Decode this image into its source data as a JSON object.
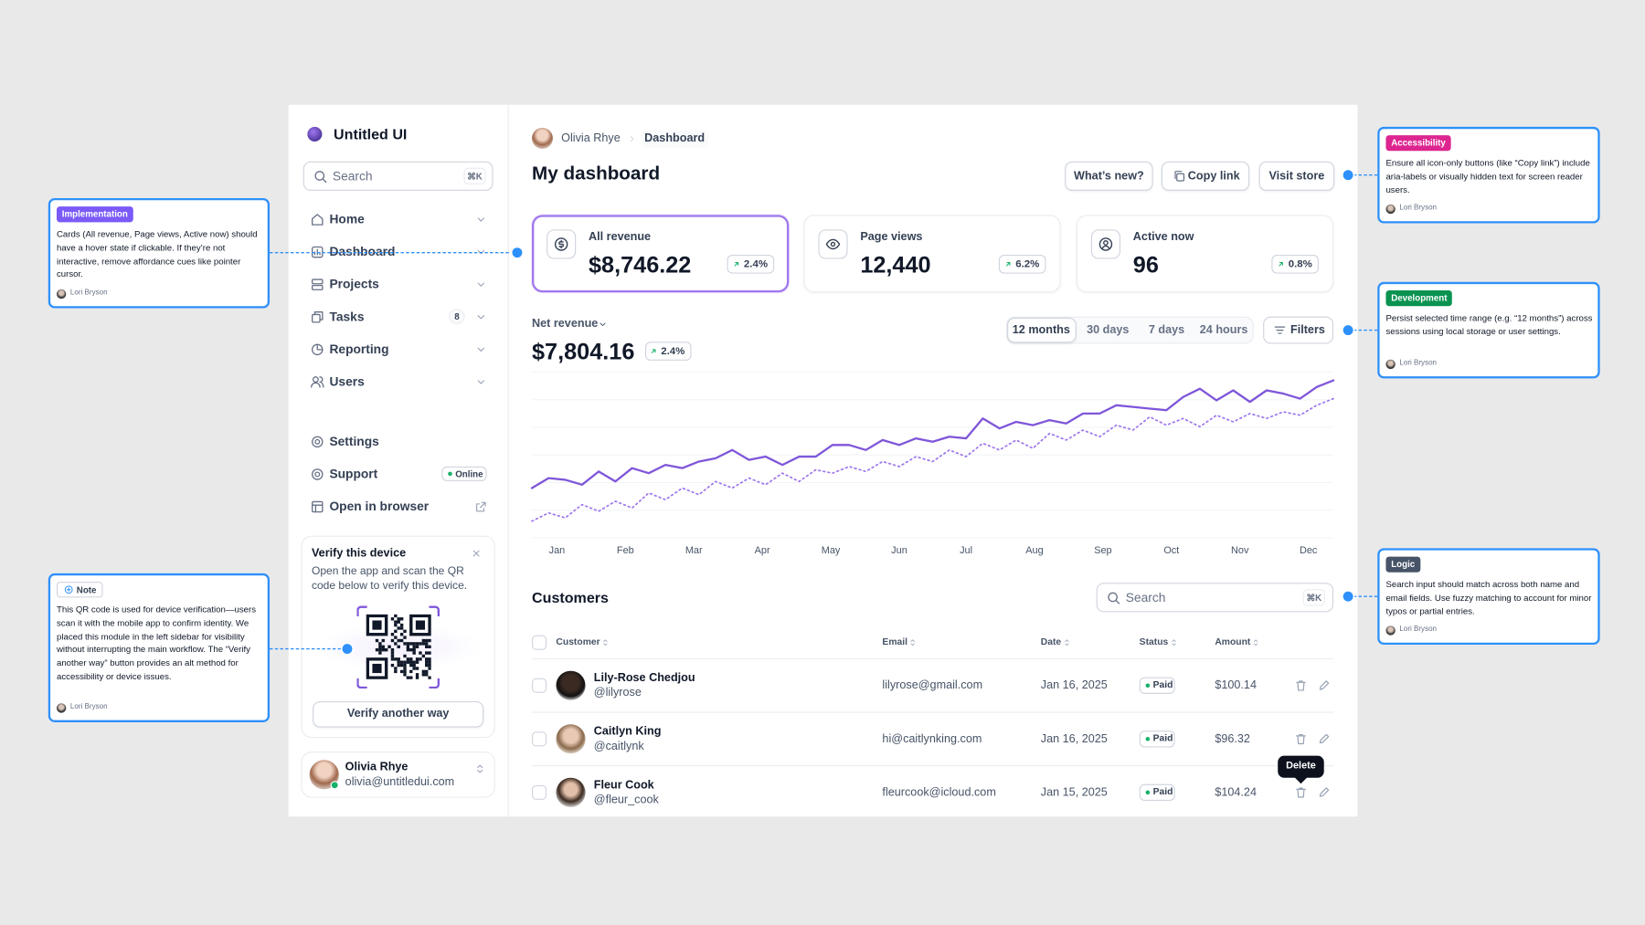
{
  "sidebar": {
    "brand": "Untitled UI",
    "search_placeholder": "Search",
    "search_shortcut": "⌘K",
    "nav": [
      {
        "label": "Home"
      },
      {
        "label": "Dashboard"
      },
      {
        "label": "Projects"
      },
      {
        "label": "Tasks",
        "badge": 8
      },
      {
        "label": "Reporting"
      },
      {
        "label": "Users"
      }
    ],
    "footer_nav": [
      {
        "label": "Settings"
      },
      {
        "label": "Support",
        "badge": "Online"
      },
      {
        "label": "Open in browser"
      }
    ],
    "verify": {
      "title": "Verify this device",
      "text": "Open the app and scan the QR code below to verify this device.",
      "button": "Verify another way"
    },
    "user": {
      "name": "Olivia Rhye",
      "email": "olivia@untitledui.com"
    }
  },
  "header": {
    "breadcrumb": [
      "Olivia Rhye",
      "Dashboard"
    ],
    "title": "My dashboard",
    "buttons": [
      "What’s new?",
      "Copy link",
      "Visit store"
    ]
  },
  "stats": [
    {
      "label": "All revenue",
      "value": "$8,746.22",
      "change": "2.4%"
    },
    {
      "label": "Page views",
      "value": "12,440",
      "change": "6.2%"
    },
    {
      "label": "Active now",
      "value": "96",
      "change": "0.8%"
    }
  ],
  "revenue": {
    "label": "Net revenue",
    "value": "$7,804.16",
    "change": "2.4%",
    "ranges": [
      "12 months",
      "30 days",
      "7 days",
      "24 hours"
    ],
    "selected_range": 0,
    "filters": "Filters"
  },
  "chart": {
    "type": "line",
    "x": [
      0,
      1,
      2,
      3,
      4,
      5,
      6,
      7,
      8,
      9,
      10,
      11,
      12,
      13,
      14,
      15,
      16,
      17,
      18,
      19,
      20,
      21,
      22,
      23,
      24,
      25,
      26,
      27,
      28,
      29,
      30,
      31,
      32,
      33,
      34,
      35,
      36,
      37,
      38,
      39,
      40,
      41,
      42,
      43,
      44,
      45,
      46,
      47,
      48
    ],
    "xlim": [
      0,
      48
    ],
    "ylim": [
      0,
      100
    ],
    "xticks": [
      {
        "value": 1.5,
        "label": "Jan"
      },
      {
        "value": 5.6,
        "label": "Feb"
      },
      {
        "value": 9.7,
        "label": "Mar"
      },
      {
        "value": 13.8,
        "label": "Apr"
      },
      {
        "value": 17.9,
        "label": "May"
      },
      {
        "value": 22,
        "label": "Jun"
      },
      {
        "value": 26,
        "label": "Jul"
      },
      {
        "value": 30.1,
        "label": "Aug"
      },
      {
        "value": 34.2,
        "label": "Sep"
      },
      {
        "value": 38.3,
        "label": "Oct"
      },
      {
        "value": 42.4,
        "label": "Nov"
      },
      {
        "value": 46.5,
        "label": "Dec"
      }
    ],
    "grid": true,
    "series": [
      {
        "color": "#7f56d9",
        "style": "solid",
        "values": [
          30,
          36,
          35,
          32,
          40,
          34,
          42,
          39,
          44,
          42,
          46,
          48,
          53,
          47,
          49,
          44,
          49,
          49,
          56,
          56,
          53,
          59,
          56,
          60,
          58,
          61,
          60,
          72,
          66,
          70,
          68,
          71,
          69,
          75,
          75,
          80,
          79,
          78,
          77,
          85,
          90,
          83,
          89,
          82,
          89,
          87,
          84,
          91,
          95
        ]
      },
      {
        "color": "#9e77ed",
        "style": "dotted",
        "values": [
          10,
          15,
          12,
          20,
          16,
          22,
          18,
          27,
          23,
          30,
          26,
          34,
          30,
          36,
          32,
          39,
          34,
          41,
          39,
          43,
          40,
          46,
          43,
          49,
          46,
          53,
          49,
          57,
          53,
          59,
          54,
          63,
          59,
          65,
          61,
          68,
          65,
          73,
          68,
          72,
          67,
          74,
          70,
          75,
          72,
          76,
          74,
          80,
          84
        ]
      }
    ]
  },
  "customers": {
    "title": "Customers",
    "search_placeholder": "Search",
    "search_shortcut": "⌘K",
    "columns": [
      "Customer",
      "Email",
      "Date",
      "Status",
      "Amount"
    ],
    "rows": [
      {
        "name": "Lily-Rose Chedjou",
        "handle": "@lilyrose",
        "email": "lilyrose@gmail.com",
        "date": "Jan 16, 2025",
        "status": "Paid",
        "amount": "$100.14"
      },
      {
        "name": "Caitlyn King",
        "handle": "@caitlynk",
        "email": "hi@caitlynking.com",
        "date": "Jan 16, 2025",
        "status": "Paid",
        "amount": "$96.32"
      },
      {
        "name": "Fleur Cook",
        "handle": "@fleur_cook",
        "email": "fleurcook@icloud.com",
        "date": "Jan 15, 2025",
        "status": "Paid",
        "amount": "$104.24"
      }
    ]
  },
  "tooltip": "Delete",
  "annotations": [
    {
      "tag": "Implementation",
      "color": "#7a5af8",
      "text": "Cards (All revenue, Page views, Active now) should have a hover state if clickable. If they’re not interactive, remove affordance cues like pointer cursor.",
      "author": "Lori Bryson"
    },
    {
      "tag": "Note",
      "color": "#ffffff",
      "text": "This QR code is used for device verification—users scan it with the mobile app to confirm identity. We placed this module in the left sidebar for visibility without interrupting the main workflow. The “Verify another way” button provides an alt method for accessibility or device issues.",
      "author": "Lori Bryson"
    },
    {
      "tag": "Accessibility",
      "color": "#dd2590",
      "text": "Ensure all icon-only buttons (like “Copy link”) include aria-labels or visually hidden text for screen reader users.",
      "author": "Lori Bryson"
    },
    {
      "tag": "Development",
      "color": "#099250",
      "text": "Persist selected time range (e.g. “12 months”) across sessions using local storage or user settings.",
      "author": "Lori Bryson"
    },
    {
      "tag": "Logic",
      "color": "#475467",
      "text": "Search input should match across both name and email fields. Use fuzzy matching to account for minor typos or partial entries.",
      "author": "Lori Bryson"
    }
  ]
}
